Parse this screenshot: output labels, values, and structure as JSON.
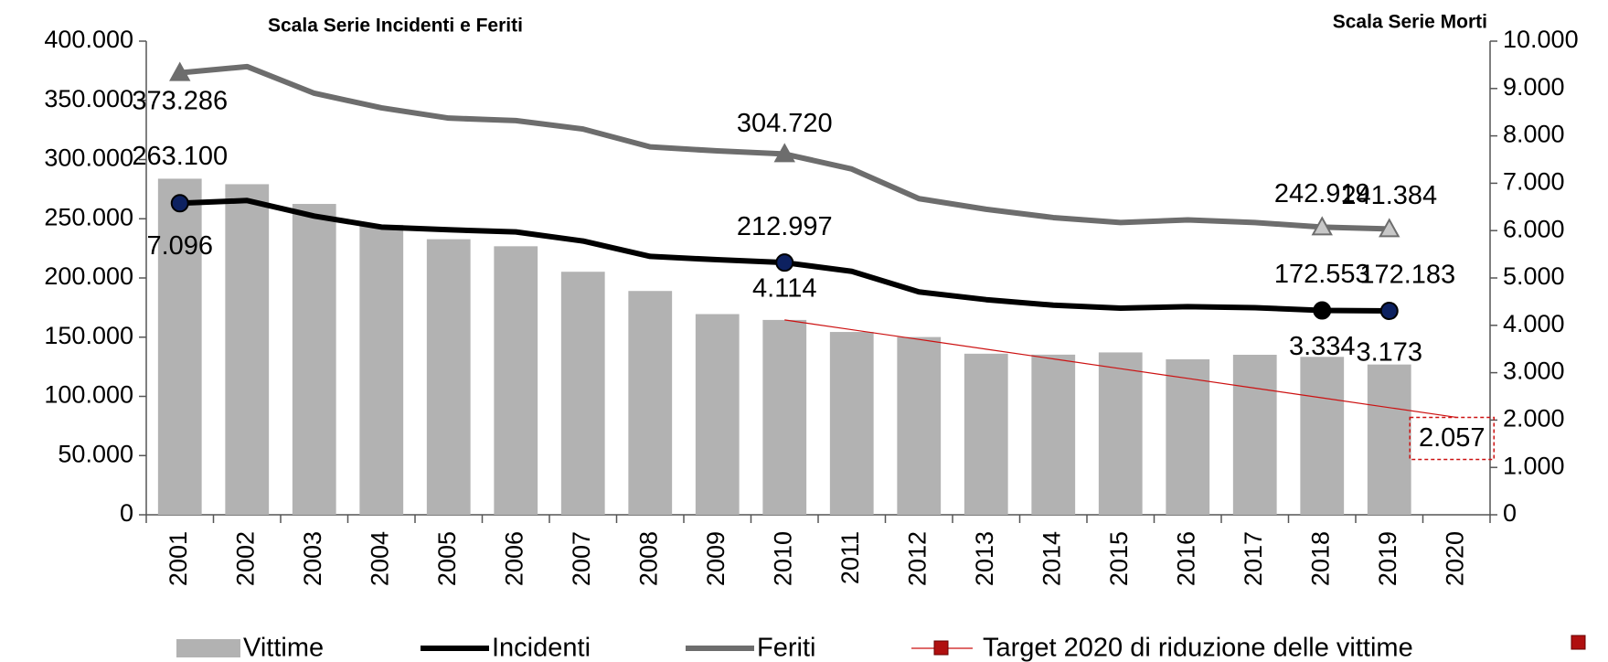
{
  "chart_data": {
    "type": "combo",
    "y_axis_title": "Scala Serie Incidenti e Feriti",
    "y2_axis_title": "Scala Serie Morti",
    "categories": [
      "2001",
      "2002",
      "2003",
      "2004",
      "2005",
      "2006",
      "2007",
      "2008",
      "2009",
      "2010",
      "2011",
      "2012",
      "2013",
      "2014",
      "2015",
      "2016",
      "2017",
      "2018",
      "2019",
      "2020"
    ],
    "ylim": [
      0,
      400000
    ],
    "yticks": [
      0,
      {
        "value": 50000,
        "label": "50.000"
      },
      {
        "value": 100000,
        "label": "100.000"
      },
      {
        "value": 150000,
        "label": "150.000"
      },
      {
        "value": 200000,
        "label": "200.000"
      },
      {
        "value": 250000,
        "label": "250.000"
      },
      {
        "value": 300000,
        "label": "300.000"
      },
      {
        "value": 350000,
        "label": "350.000"
      },
      {
        "value": 400000,
        "label": "400.000"
      }
    ],
    "y2lim": [
      0,
      10000
    ],
    "y2ticks": [
      0,
      {
        "value": 1000,
        "label": "1.000"
      },
      {
        "value": 2000,
        "label": "2.000"
      },
      {
        "value": 3000,
        "label": "3.000"
      },
      {
        "value": 4000,
        "label": "4.000"
      },
      {
        "value": 5000,
        "label": "5.000"
      },
      {
        "value": 6000,
        "label": "6.000"
      },
      {
        "value": 7000,
        "label": "7.000"
      },
      {
        "value": 8000,
        "label": "8.000"
      },
      {
        "value": 9000,
        "label": "9.000"
      },
      {
        "value": 10000,
        "label": "10.000"
      }
    ],
    "series": [
      {
        "name": "Vittime",
        "type": "bar",
        "axis": "y2",
        "color": "#b2b2b2",
        "values": [
          7096,
          6980,
          6563,
          6122,
          5818,
          5669,
          5131,
          4725,
          4237,
          4114,
          3860,
          3753,
          3401,
          3381,
          3428,
          3283,
          3378,
          3334,
          3173,
          null
        ],
        "value_labels": [
          "7.096",
          null,
          null,
          null,
          null,
          null,
          null,
          null,
          null,
          "4.114",
          null,
          null,
          null,
          null,
          null,
          null,
          null,
          "3.334",
          "3.173",
          null
        ]
      },
      {
        "name": "Incidenti",
        "type": "line",
        "axis": "y",
        "color": "#000000",
        "marker": "circle",
        "marker_color": "#0d2160",
        "values": [
          263100,
          265402,
          252271,
          243000,
          240700,
          238900,
          231200,
          218200,
          215400,
          212997,
          205600,
          188200,
          181700,
          177000,
          174500,
          175800,
          174900,
          172553,
          172183,
          null
        ],
        "value_labels": [
          "263.100",
          null,
          null,
          null,
          null,
          null,
          null,
          null,
          null,
          "212.997",
          null,
          null,
          null,
          null,
          null,
          null,
          null,
          "172.553",
          "172.183",
          null
        ]
      },
      {
        "name": "Feriti",
        "type": "line",
        "axis": "y",
        "color": "#6d6d6d",
        "marker": "triangle",
        "marker_color": "#6d6d6d",
        "values": [
          373286,
          378500,
          356000,
          343700,
          335000,
          332900,
          325800,
          310700,
          307300,
          304720,
          292000,
          267000,
          258000,
          251000,
          246800,
          249000,
          246800,
          242919,
          241384,
          null
        ],
        "value_labels": [
          "373.286",
          null,
          null,
          null,
          null,
          null,
          null,
          null,
          null,
          "304.720",
          null,
          null,
          null,
          null,
          null,
          null,
          null,
          "242.919",
          "241.384",
          null
        ]
      },
      {
        "name": "Target 2020 di riduzione delle vittime",
        "type": "line",
        "axis": "y2",
        "color": "#cc1111",
        "marker": "square",
        "marker_color": "#b01010",
        "values": [
          null,
          null,
          null,
          null,
          null,
          null,
          null,
          null,
          null,
          4114,
          3908.3,
          3702.6,
          3496.9,
          3291.2,
          3085.5,
          2879.8,
          2674.1,
          2468.4,
          2262.7,
          2057
        ],
        "value_labels": [
          null,
          null,
          null,
          null,
          null,
          null,
          null,
          null,
          null,
          null,
          null,
          null,
          null,
          null,
          null,
          null,
          null,
          null,
          null,
          "2.057"
        ]
      }
    ]
  }
}
